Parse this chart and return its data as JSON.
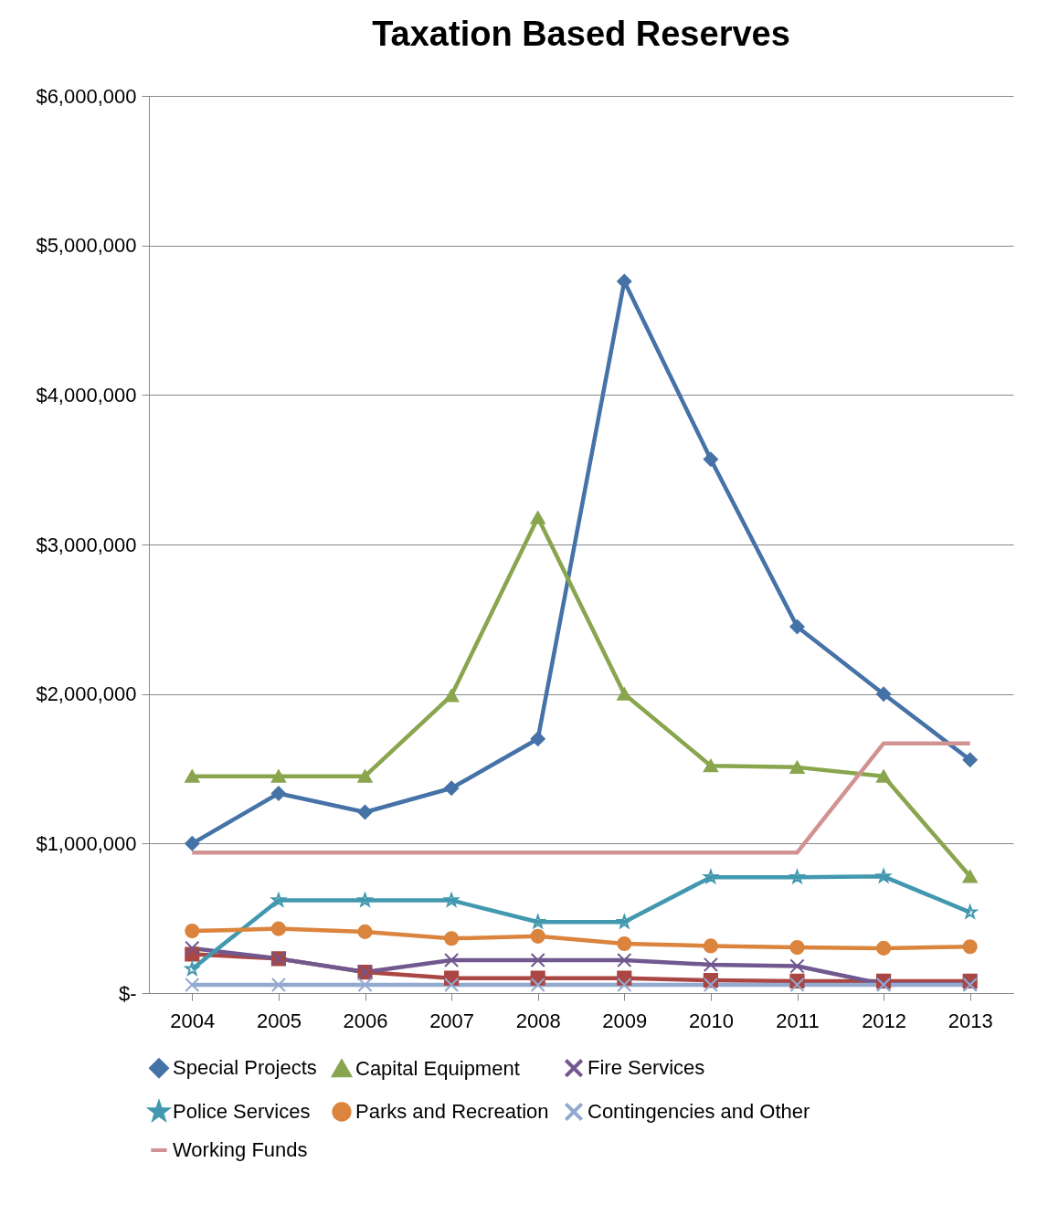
{
  "chart_data": {
    "type": "line",
    "title": "Taxation Based Reserves",
    "categories": [
      "2004",
      "2005",
      "2006",
      "2007",
      "2008",
      "2009",
      "2010",
      "2011",
      "2012",
      "2013"
    ],
    "series": [
      {
        "name": "Special Projects",
        "color": "#4572a7",
        "marker": "diamond",
        "values": [
          1000000,
          1335000,
          1210000,
          1370000,
          1700000,
          4760000,
          3570000,
          2450000,
          2000000,
          1560000
        ]
      },
      {
        "color": "#aa4643",
        "marker": "square",
        "values": [
          260000,
          230000,
          140000,
          100000,
          100000,
          100000,
          85000,
          80000,
          80000,
          80000
        ]
      },
      {
        "name": "Capital Equipment",
        "color": "#89a54e",
        "marker": "triangle",
        "values": [
          1450000,
          1450000,
          1450000,
          1990000,
          3180000,
          2000000,
          1520000,
          1510000,
          1450000,
          780000
        ]
      },
      {
        "name": "Fire Services",
        "color": "#71588f",
        "marker": "cross",
        "values": [
          300000,
          230000,
          140000,
          220000,
          220000,
          220000,
          190000,
          180000,
          60000,
          60000
        ]
      },
      {
        "name": "Police Services",
        "color": "#4198af",
        "marker": "star",
        "values": [
          160000,
          620000,
          620000,
          620000,
          475000,
          475000,
          775000,
          775000,
          780000,
          540000
        ]
      },
      {
        "name": "Parks and Recreation",
        "color": "#db843d",
        "marker": "circle",
        "values": [
          415000,
          430000,
          410000,
          365000,
          380000,
          330000,
          315000,
          305000,
          300000,
          310000
        ]
      },
      {
        "name": "Contingencies and Other",
        "color": "#93a9cf",
        "marker": "cross",
        "values": [
          55000,
          55000,
          55000,
          55000,
          55000,
          55000,
          55000,
          55000,
          55000,
          55000
        ]
      },
      {
        "name": "Working Funds",
        "color": "#d19392",
        "marker": "none",
        "values": [
          940000,
          940000,
          940000,
          940000,
          940000,
          940000,
          940000,
          940000,
          1670000,
          1670000
        ]
      }
    ],
    "ylim": [
      0,
      6000000
    ],
    "yticks": [
      {
        "value": 0,
        "label": "$-"
      },
      {
        "value": 1000000,
        "label": "$1,000,000"
      },
      {
        "value": 2000000,
        "label": "$2,000,000"
      },
      {
        "value": 3000000,
        "label": "$3,000,000"
      },
      {
        "value": 4000000,
        "label": "$4,000,000"
      },
      {
        "value": 5000000,
        "label": "$5,000,000"
      },
      {
        "value": 6000000,
        "label": "$6,000,000"
      }
    ],
    "grid": "y",
    "legend": "bottom",
    "line_style": "solid"
  }
}
